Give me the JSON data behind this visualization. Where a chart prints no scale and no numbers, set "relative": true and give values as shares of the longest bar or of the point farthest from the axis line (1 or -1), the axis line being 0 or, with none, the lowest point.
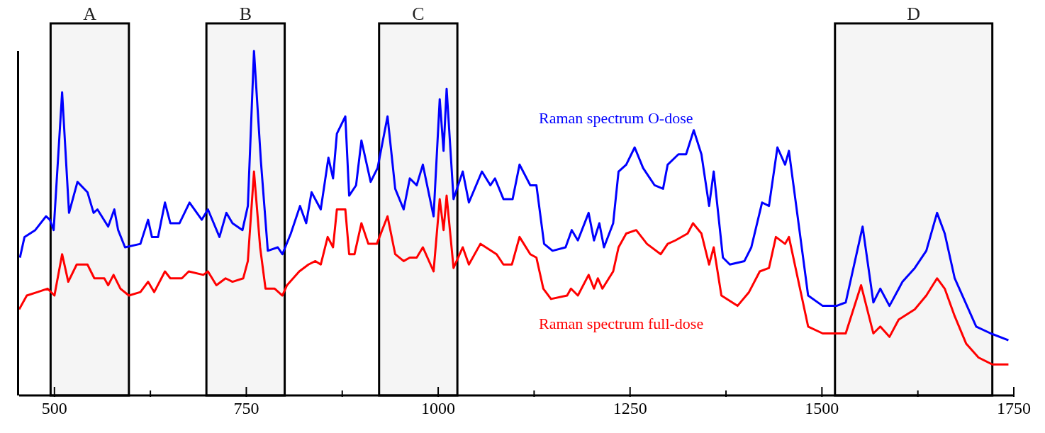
{
  "chart_data": {
    "type": "line",
    "relative": true,
    "xlim": [
      454,
      1750
    ],
    "xticks": [
      500,
      {
        "value": 625,
        "label": null
      },
      750,
      {
        "value": 875,
        "label": null
      },
      1000,
      {
        "value": 1125,
        "label": null
      },
      1250,
      {
        "value": 1375,
        "label": null
      },
      1500,
      {
        "value": 1625,
        "label": null
      },
      1750
    ],
    "grid": false,
    "legend": false,
    "marker": "none",
    "line_style": "solid",
    "bands": [
      {
        "axis": "x",
        "from": 495,
        "to": 597,
        "label": "A"
      },
      {
        "axis": "x",
        "from": 698,
        "to": 800,
        "label": "B"
      },
      {
        "axis": "x",
        "from": 923,
        "to": 1025,
        "label": "C"
      },
      {
        "axis": "x",
        "from": 1517,
        "to": 1722,
        "label": "D"
      }
    ],
    "series": [
      {
        "name": "Raman spectrum O-dose",
        "color": "#0000ff",
        "x": [
          455,
          461,
          475,
          489,
          494,
          499,
          510,
          519,
          530,
          543,
          551,
          556,
          570,
          578,
          583,
          592,
          612,
          622,
          627,
          635,
          644,
          651,
          663,
          676,
          692,
          700,
          715,
          724,
          732,
          745,
          752,
          760,
          769,
          778,
          791,
          797,
          808,
          820,
          828,
          835,
          847,
          857,
          863,
          868,
          879,
          884,
          893,
          900,
          912,
          921,
          934,
          944,
          955,
          963,
          972,
          980,
          994,
          1002,
          1007,
          1011,
          1020,
          1032,
          1040,
          1057,
          1068,
          1074,
          1085,
          1097,
          1106,
          1120,
          1128,
          1138,
          1149,
          1166,
          1174,
          1182,
          1196,
          1203,
          1210,
          1216,
          1228,
          1235,
          1245,
          1256,
          1267,
          1282,
          1293,
          1299,
          1313,
          1323,
          1333,
          1343,
          1353,
          1359,
          1371,
          1380,
          1399,
          1408,
          1422,
          1431,
          1442,
          1452,
          1457,
          1482,
          1501,
          1519,
          1531,
          1553,
          1567,
          1576,
          1588,
          1605,
          1621,
          1636,
          1650,
          1660,
          1673,
          1685,
          1701,
          1720,
          1743
        ],
        "values": [
          0.4,
          0.46,
          0.48,
          0.52,
          0.51,
          0.48,
          0.88,
          0.53,
          0.62,
          0.59,
          0.53,
          0.54,
          0.49,
          0.54,
          0.48,
          0.43,
          0.44,
          0.51,
          0.46,
          0.46,
          0.56,
          0.5,
          0.5,
          0.56,
          0.51,
          0.54,
          0.46,
          0.53,
          0.5,
          0.48,
          0.55,
          1.0,
          0.68,
          0.42,
          0.43,
          0.41,
          0.47,
          0.55,
          0.5,
          0.59,
          0.54,
          0.69,
          0.63,
          0.76,
          0.81,
          0.58,
          0.61,
          0.74,
          0.62,
          0.66,
          0.81,
          0.6,
          0.54,
          0.63,
          0.61,
          0.67,
          0.52,
          0.86,
          0.71,
          0.89,
          0.57,
          0.65,
          0.56,
          0.65,
          0.61,
          0.63,
          0.57,
          0.57,
          0.67,
          0.61,
          0.61,
          0.44,
          0.42,
          0.43,
          0.48,
          0.45,
          0.53,
          0.45,
          0.5,
          0.43,
          0.5,
          0.65,
          0.67,
          0.72,
          0.66,
          0.61,
          0.6,
          0.67,
          0.7,
          0.7,
          0.77,
          0.7,
          0.55,
          0.65,
          0.4,
          0.38,
          0.39,
          0.43,
          0.56,
          0.55,
          0.72,
          0.67,
          0.71,
          0.29,
          0.26,
          0.26,
          0.27,
          0.49,
          0.27,
          0.31,
          0.26,
          0.33,
          0.37,
          0.42,
          0.53,
          0.47,
          0.34,
          0.28,
          0.2,
          0.18,
          0.16
        ]
      },
      {
        "name": "Raman spectrum full-dose",
        "color": "#ff0000",
        "x": [
          454,
          464,
          478,
          491,
          500,
          510,
          518,
          529,
          543,
          552,
          565,
          570,
          577,
          586,
          597,
          612,
          622,
          630,
          644,
          651,
          666,
          675,
          694,
          700,
          711,
          723,
          732,
          746,
          752,
          760,
          768,
          775,
          787,
          797,
          803,
          819,
          831,
          840,
          847,
          856,
          863,
          868,
          879,
          884,
          891,
          900,
          909,
          920,
          934,
          944,
          955,
          963,
          972,
          980,
          994,
          1002,
          1007,
          1011,
          1020,
          1032,
          1040,
          1055,
          1076,
          1085,
          1096,
          1106,
          1120,
          1128,
          1137,
          1147,
          1168,
          1173,
          1182,
          1196,
          1203,
          1208,
          1214,
          1228,
          1235,
          1245,
          1258,
          1272,
          1290,
          1299,
          1309,
          1325,
          1332,
          1343,
          1353,
          1359,
          1369,
          1390,
          1405,
          1419,
          1431,
          1440,
          1452,
          1457,
          1482,
          1501,
          1531,
          1551,
          1567,
          1576,
          1588,
          1600,
          1621,
          1636,
          1650,
          1660,
          1673,
          1688,
          1704,
          1722,
          1743
        ],
        "values": [
          0.25,
          0.29,
          0.3,
          0.31,
          0.29,
          0.41,
          0.33,
          0.38,
          0.38,
          0.34,
          0.34,
          0.32,
          0.35,
          0.31,
          0.29,
          0.3,
          0.33,
          0.3,
          0.36,
          0.34,
          0.34,
          0.36,
          0.35,
          0.36,
          0.32,
          0.34,
          0.33,
          0.34,
          0.39,
          0.65,
          0.43,
          0.31,
          0.31,
          0.29,
          0.32,
          0.36,
          0.38,
          0.39,
          0.38,
          0.46,
          0.43,
          0.54,
          0.54,
          0.41,
          0.41,
          0.5,
          0.44,
          0.44,
          0.52,
          0.41,
          0.39,
          0.4,
          0.4,
          0.43,
          0.36,
          0.57,
          0.48,
          0.58,
          0.37,
          0.43,
          0.38,
          0.44,
          0.41,
          0.38,
          0.38,
          0.46,
          0.41,
          0.4,
          0.31,
          0.28,
          0.29,
          0.31,
          0.29,
          0.35,
          0.31,
          0.34,
          0.31,
          0.36,
          0.43,
          0.47,
          0.48,
          0.44,
          0.41,
          0.44,
          0.45,
          0.47,
          0.5,
          0.47,
          0.38,
          0.43,
          0.29,
          0.26,
          0.3,
          0.36,
          0.37,
          0.46,
          0.44,
          0.46,
          0.2,
          0.18,
          0.18,
          0.32,
          0.18,
          0.2,
          0.17,
          0.22,
          0.25,
          0.29,
          0.34,
          0.31,
          0.23,
          0.15,
          0.11,
          0.09,
          0.09
        ]
      }
    ]
  }
}
